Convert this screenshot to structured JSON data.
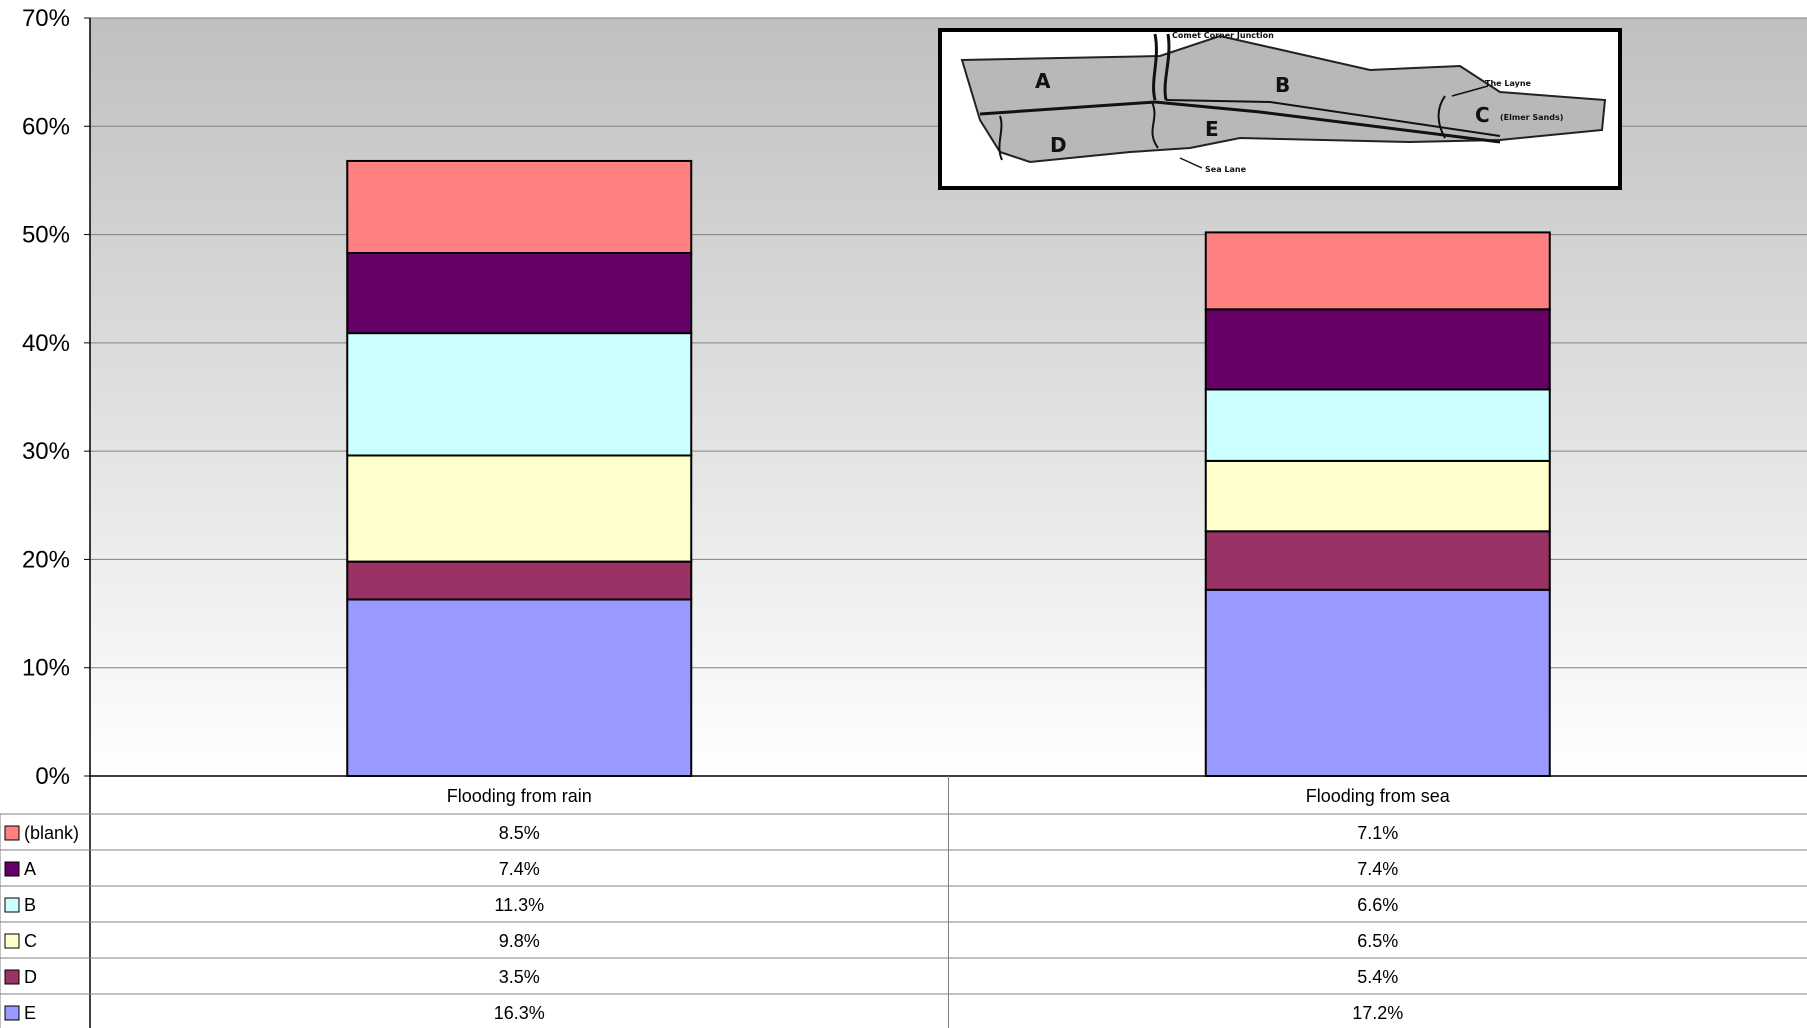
{
  "chart_data": {
    "type": "bar",
    "stacked": true,
    "categories": [
      "Flooding from rain",
      "Flooding from sea"
    ],
    "series": [
      {
        "name": "E",
        "values": [
          16.3,
          17.2
        ],
        "color": "#9999FF"
      },
      {
        "name": "D",
        "values": [
          3.5,
          5.4
        ],
        "color": "#993366"
      },
      {
        "name": "C",
        "values": [
          9.8,
          6.5
        ],
        "color": "#FFFFCC"
      },
      {
        "name": "B",
        "values": [
          11.3,
          6.6
        ],
        "color": "#CCFFFF"
      },
      {
        "name": "A",
        "values": [
          7.4,
          7.4
        ],
        "color": "#660066"
      },
      {
        "name": "(blank)",
        "values": [
          8.5,
          7.1
        ],
        "color": "#FF8080"
      }
    ],
    "y_ticks": [
      "0%",
      "10%",
      "20%",
      "30%",
      "40%",
      "50%",
      "60%",
      "70%"
    ],
    "ylim": [
      0,
      70
    ],
    "grid": true,
    "legend": "data table below chart",
    "data_table": {
      "rows": [
        {
          "name": "(blank)",
          "values": [
            "8.5%",
            "7.1%"
          ]
        },
        {
          "name": "A",
          "values": [
            "7.4%",
            "7.4%"
          ]
        },
        {
          "name": "B",
          "values": [
            "11.3%",
            "6.6%"
          ]
        },
        {
          "name": "C",
          "values": [
            "9.8%",
            "6.5%"
          ]
        },
        {
          "name": "D",
          "values": [
            "3.5%",
            "5.4%"
          ]
        },
        {
          "name": "E",
          "values": [
            "16.3%",
            "17.2%"
          ]
        }
      ]
    },
    "inset_map": {
      "areas": [
        "A",
        "B",
        "C",
        "D",
        "E"
      ],
      "labels": [
        "Comet Corner Junction",
        "The Layne",
        "(Elmer Sands)",
        "Sea Lane"
      ]
    }
  }
}
